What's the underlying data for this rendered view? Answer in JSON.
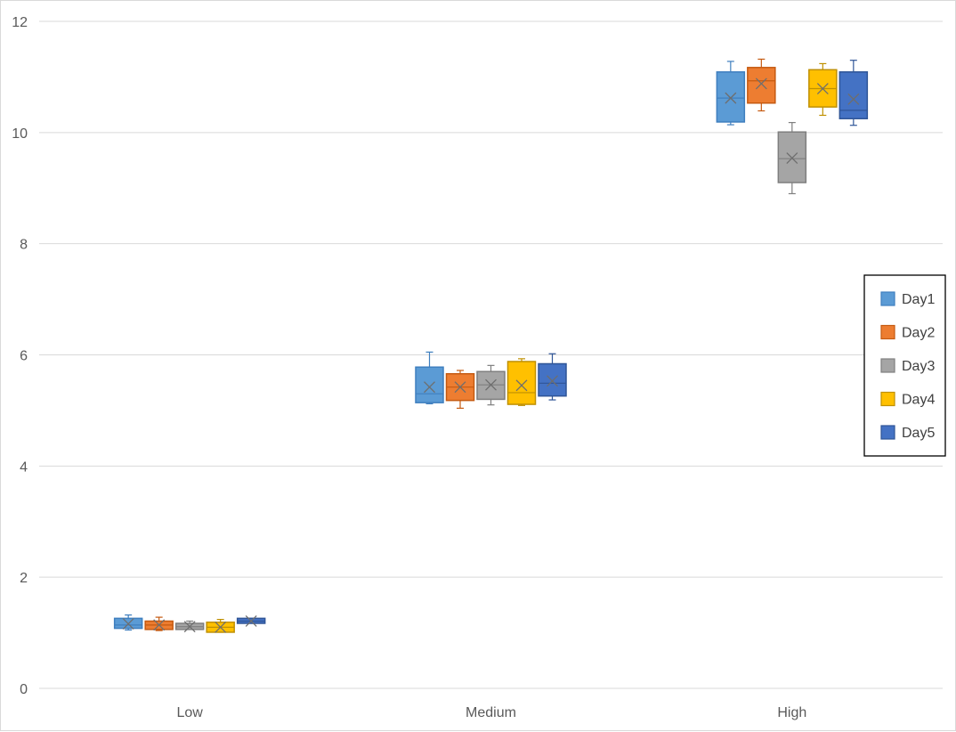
{
  "chart_data": {
    "type": "boxplot",
    "title": "",
    "xlabel": "",
    "ylabel": "",
    "ylim": [
      0,
      12
    ],
    "yticks": [
      0,
      2,
      4,
      6,
      8,
      10,
      12
    ],
    "grid": true,
    "legend_position": "right",
    "categories": [
      "Low",
      "Medium",
      "High"
    ],
    "series": [
      {
        "name": "Day1",
        "color": "#5b9bd5",
        "stroke": "#3f7fbf",
        "boxes": [
          {
            "min": 1.05,
            "q1": 1.08,
            "median": 1.14,
            "q3": 1.26,
            "max": 1.32,
            "mean": 1.16
          },
          {
            "min": 5.12,
            "q1": 5.14,
            "median": 5.3,
            "q3": 5.78,
            "max": 6.05,
            "mean": 5.42
          },
          {
            "min": 10.14,
            "q1": 10.19,
            "median": 10.62,
            "q3": 11.09,
            "max": 11.28,
            "mean": 10.62
          }
        ]
      },
      {
        "name": "Day2",
        "color": "#ed7d31",
        "stroke": "#c55a11",
        "boxes": [
          {
            "min": 1.04,
            "q1": 1.06,
            "median": 1.14,
            "q3": 1.21,
            "max": 1.28,
            "mean": 1.14
          },
          {
            "min": 5.04,
            "q1": 5.18,
            "median": 5.42,
            "q3": 5.66,
            "max": 5.72,
            "mean": 5.42
          },
          {
            "min": 10.39,
            "q1": 10.53,
            "median": 10.93,
            "q3": 11.17,
            "max": 11.32,
            "mean": 10.88
          }
        ]
      },
      {
        "name": "Day3",
        "color": "#a5a5a5",
        "stroke": "#7f7f7f",
        "boxes": [
          {
            "min": 1.06,
            "q1": 1.06,
            "median": 1.11,
            "q3": 1.17,
            "max": 1.21,
            "mean": 1.11
          },
          {
            "min": 5.1,
            "q1": 5.2,
            "median": 5.46,
            "q3": 5.7,
            "max": 5.81,
            "mean": 5.46
          },
          {
            "min": 8.9,
            "q1": 9.1,
            "median": 9.53,
            "q3": 10.01,
            "max": 10.18,
            "mean": 9.54
          }
        ]
      },
      {
        "name": "Day4",
        "color": "#ffc000",
        "stroke": "#bf9000",
        "boxes": [
          {
            "min": 1.01,
            "q1": 1.01,
            "median": 1.1,
            "q3": 1.19,
            "max": 1.24,
            "mean": 1.1
          },
          {
            "min": 5.09,
            "q1": 5.11,
            "median": 5.32,
            "q3": 5.88,
            "max": 5.93,
            "mean": 5.45
          },
          {
            "min": 10.31,
            "q1": 10.46,
            "median": 10.79,
            "q3": 11.13,
            "max": 11.24,
            "mean": 10.79
          }
        ]
      },
      {
        "name": "Day5",
        "color": "#4472c4",
        "stroke": "#2f5597",
        "boxes": [
          {
            "min": 1.17,
            "q1": 1.17,
            "median": 1.21,
            "q3": 1.26,
            "max": 1.26,
            "mean": 1.21
          },
          {
            "min": 5.19,
            "q1": 5.26,
            "median": 5.49,
            "q3": 5.84,
            "max": 6.02,
            "mean": 5.53
          },
          {
            "min": 10.13,
            "q1": 10.25,
            "median": 10.4,
            "q3": 11.09,
            "max": 11.3,
            "mean": 10.6
          }
        ]
      }
    ]
  }
}
